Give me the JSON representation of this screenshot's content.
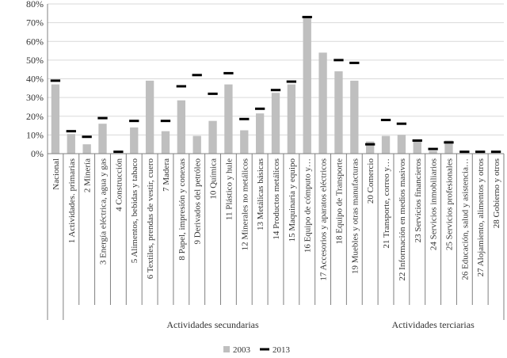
{
  "chart_data": {
    "type": "bar",
    "categories": [
      "Nacional",
      "1 Actividades. primarias",
      "2 Minería",
      "3 Energía eléctrica, agua y gas",
      "4 Construcción",
      "5 Alimentos, bebidas y tabaco",
      "6 Textiles, prendas de vestir, cuero",
      "7 Madera",
      "8 Papel, impresión y conexas",
      "9 Derivados del petróleo",
      "10 Química",
      "11 Plástico y hule",
      "12 Minerales no metálicos",
      "13 Metálicas básicas",
      "14 Productos metálicos",
      "15 Maquinaria y equipo",
      "16 Equipo de cómputo y…",
      "17 Accesorios y aparatos eléctricos",
      "18 Equipo de Transporte",
      "19 Muebles y otras manufacturas",
      "20 Comercio",
      "21 Transporte, correo y…",
      "22 Información en medios masivos",
      "23 Servicios financieros",
      "24 Servicios inmobiliarios",
      "25 Servicios profesionales",
      "26 Educación, salud y asistencia…",
      "27 Alojamiento, alimentos y otros",
      "28 Gobierno y otros"
    ],
    "series": [
      {
        "name": "2003",
        "mark": "bar",
        "color": "#bfbfbf",
        "values": [
          37,
          10.5,
          5,
          16,
          0,
          14,
          39,
          12,
          28.5,
          9.5,
          17.5,
          37,
          12.5,
          21.5,
          32.5,
          37,
          73,
          54,
          44,
          39,
          6.5,
          9.5,
          10,
          7,
          1.5,
          7,
          0,
          0,
          0
        ]
      },
      {
        "name": "2013",
        "mark": "dash",
        "color": "#000000",
        "values": [
          39,
          12,
          9,
          19,
          1,
          17.5,
          null,
          17.5,
          36,
          42,
          32,
          43,
          18.5,
          24,
          34,
          38.5,
          73,
          null,
          50,
          48.5,
          5,
          18,
          16,
          7,
          2.5,
          6,
          1,
          1,
          1
        ]
      }
    ],
    "groups": [
      {
        "label": "Actividades secundarias",
        "from": 1,
        "to": 19
      },
      {
        "label": "Actividades terciarias",
        "from": 20,
        "to": 28
      }
    ],
    "yticks": [
      "0%",
      "10%",
      "20%",
      "30%",
      "40%",
      "50%",
      "60%",
      "70%",
      "80%"
    ],
    "ylim": [
      0,
      80
    ],
    "legend_position": "bottom",
    "grid": true
  }
}
